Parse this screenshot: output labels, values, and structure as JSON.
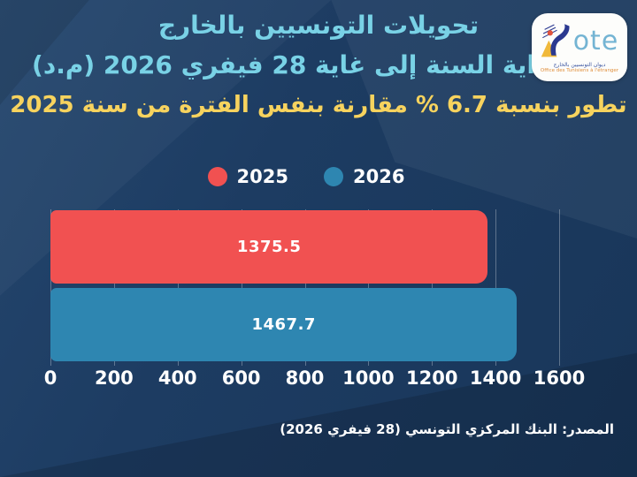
{
  "header": {
    "title_line1": "تحويلات التونسيين بالخارج",
    "title_line2": "من بداية السنة إلى غاية 28 فيفري 2026 (م.د)",
    "subtitle": "تطور بنسبة 6.7 % مقارنة بنفس الفترة من سنة 2025"
  },
  "logo": {
    "acronym": "ote",
    "arabic_name": "ديوان التونسيين بالخارج",
    "french_name": "Office des Tunisiens à l'étranger"
  },
  "source": "المصدر: البنك المركزي التونسي (28 فيفري 2026)",
  "colors": {
    "background": "#1b3a5f",
    "title_cyan": "#79d2e6",
    "subtitle_yellow": "#f7d35e",
    "bar_2025_red": "#f15151",
    "bar_2026_blue": "#2e86b1",
    "text_white": "#ffffff"
  },
  "chart_data": {
    "type": "bar",
    "orientation": "horizontal",
    "title": "تحويلات التونسيين بالخارج من بداية السنة إلى غاية 28 فيفري 2026 (م.د)",
    "subtitle": "تطور بنسبة 6.7 % مقارنة بنفس الفترة من سنة 2025",
    "growth_percent": 6.7,
    "unit": "م.د",
    "categories": [
      "2025",
      "2026"
    ],
    "values": [
      1375.5,
      1467.7
    ],
    "series_colors": [
      "#f15151",
      "#2e86b1"
    ],
    "xlim": [
      0,
      1600
    ],
    "x_ticks": [
      "0",
      "200",
      "400",
      "600",
      "800",
      "1000",
      "1200",
      "1400",
      "1600"
    ],
    "grid": true,
    "legend_position": "top",
    "data_labels": "inside-center",
    "source": "المصدر: البنك المركزي التونسي (28 فيفري 2026)"
  }
}
